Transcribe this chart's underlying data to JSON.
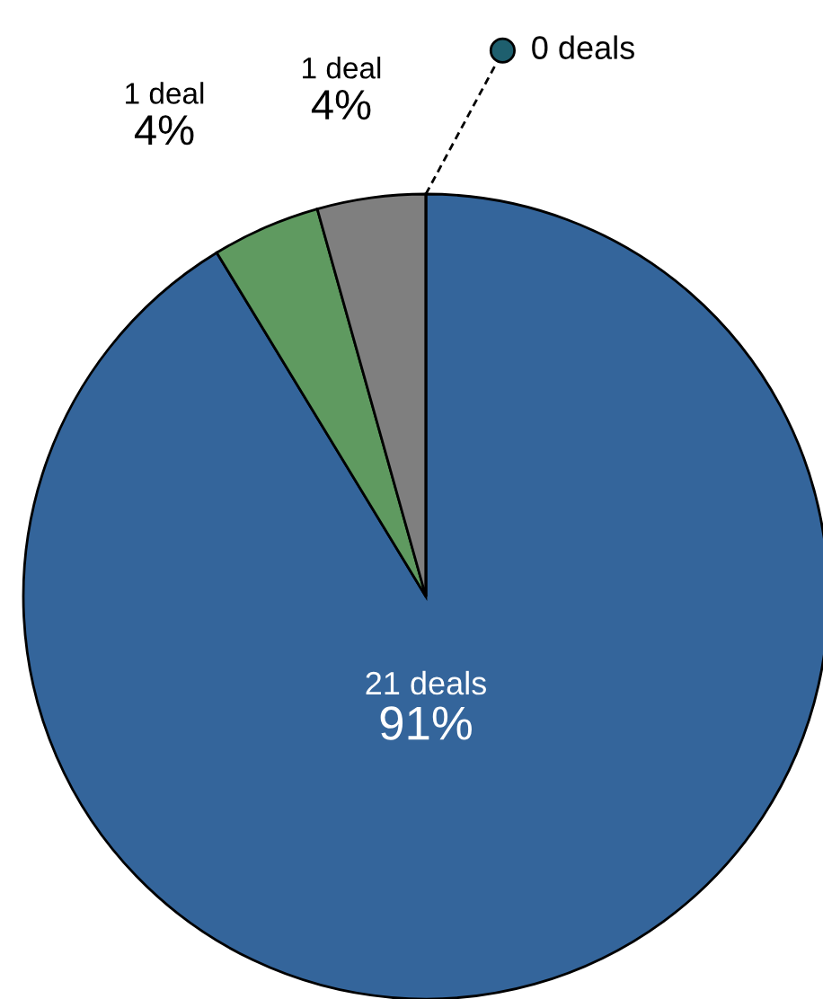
{
  "chart_data": {
    "type": "pie",
    "categories": [
      null,
      null,
      null,
      null
    ],
    "values": [
      21,
      1,
      1,
      0
    ],
    "colors": [
      "#34659b",
      "#5f9a60",
      "#7f7f7f",
      "#1e5f6e"
    ],
    "value_labels": [
      "21 deals\n91%",
      "1 deal\n4%",
      "1 deal\n4%",
      "0 deals"
    ]
  }
}
